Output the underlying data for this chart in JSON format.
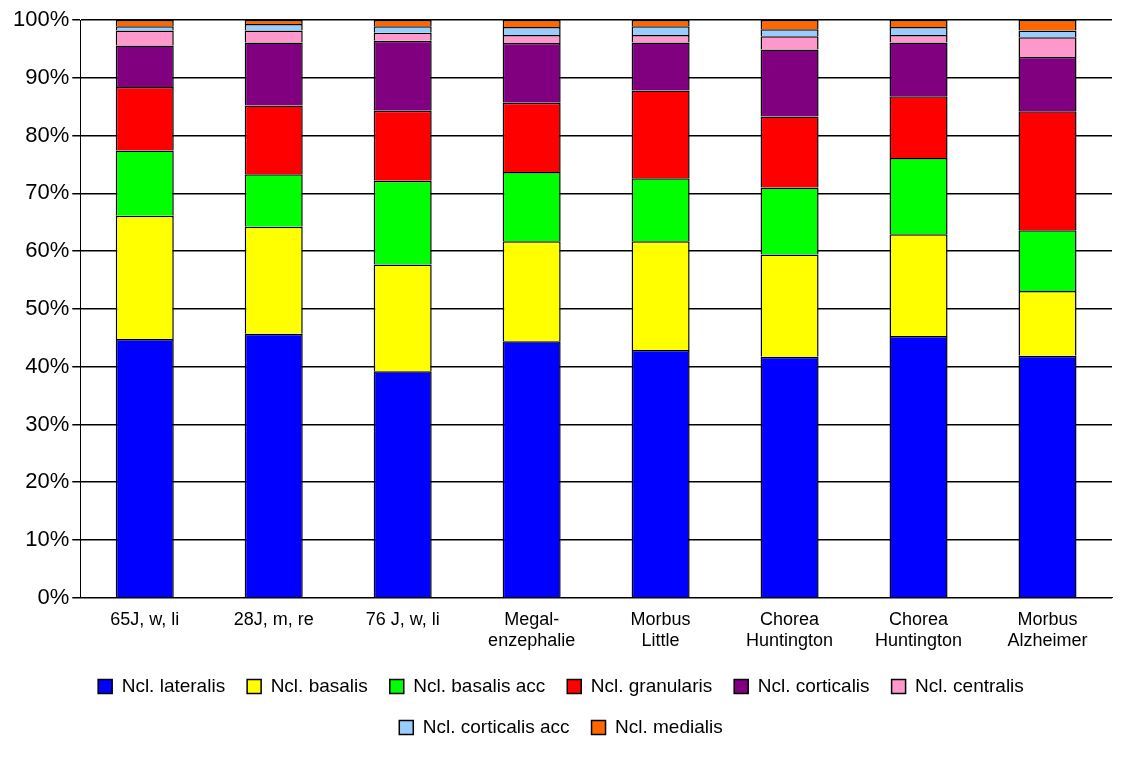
{
  "chart_data": {
    "type": "bar",
    "stacked": true,
    "categories": [
      "65J, w, li",
      "28J, m, re",
      "76 J, w, li",
      "Megal-\nenzephalie",
      "Morbus\nLittle",
      "Chorea\nHuntington",
      "Chorea\nHuntington",
      "Morbus\nAlzheimer"
    ],
    "series": [
      {
        "name": "Ncl. lateralis",
        "color": "#0000ff",
        "values": [
          44.8,
          45.7,
          39.2,
          44.4,
          42.9,
          41.7,
          45.3,
          41.9
        ]
      },
      {
        "name": "Ncl. basalis",
        "color": "#ffff00",
        "values": [
          21.3,
          18.5,
          18.5,
          17.3,
          18.8,
          17.7,
          17.6,
          11.2
        ]
      },
      {
        "name": "Ncl. basalis acc",
        "color": "#00ff00",
        "values": [
          11.3,
          9.1,
          14.5,
          12.0,
          10.9,
          11.6,
          13.2,
          10.5
        ]
      },
      {
        "name": "Ncl. granularis",
        "color": "#ff0000",
        "values": [
          11.0,
          11.9,
          12.1,
          12.0,
          15.2,
          12.3,
          10.7,
          20.6
        ]
      },
      {
        "name": "Ncl. corticalis",
        "color": "#800080",
        "values": [
          7.2,
          10.9,
          12.1,
          10.3,
          8.3,
          11.6,
          9.3,
          9.4
        ]
      },
      {
        "name": "Ncl. centralis",
        "color": "#ff99cc",
        "values": [
          2.6,
          2.1,
          1.4,
          1.4,
          1.3,
          2.3,
          1.3,
          3.4
        ]
      },
      {
        "name": "Ncl. corticalis acc",
        "color": "#99ccff",
        "values": [
          0.7,
          1.1,
          1.1,
          1.4,
          1.5,
          1.2,
          1.4,
          1.2
        ]
      },
      {
        "name": "Ncl. medialis",
        "color": "#ff6600",
        "values": [
          1.1,
          0.7,
          1.1,
          1.2,
          1.1,
          1.6,
          1.2,
          1.8
        ]
      }
    ],
    "ylim": [
      0,
      100
    ],
    "yticks": [
      {
        "value": 0,
        "label": "0%"
      },
      {
        "value": 10,
        "label": "10%"
      },
      {
        "value": 20,
        "label": "20%"
      },
      {
        "value": 30,
        "label": "30%"
      },
      {
        "value": 40,
        "label": "40%"
      },
      {
        "value": 50,
        "label": "50%"
      },
      {
        "value": 60,
        "label": "60%"
      },
      {
        "value": 70,
        "label": "70%"
      },
      {
        "value": 80,
        "label": "80%"
      },
      {
        "value": 90,
        "label": "90%"
      },
      {
        "value": 100,
        "label": "100%"
      }
    ],
    "grid": "y",
    "legend": "bottom"
  }
}
